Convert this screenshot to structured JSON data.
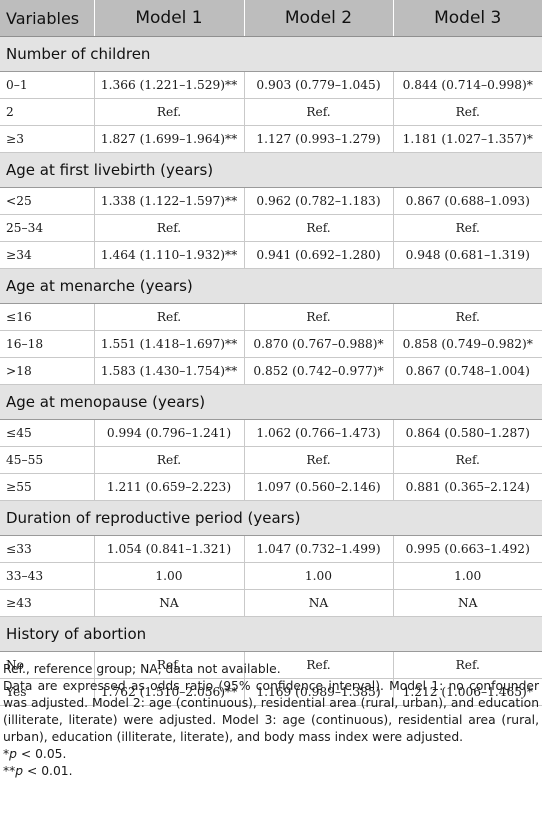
{
  "table": {
    "headers": [
      "Variables",
      "Model 1",
      "Model 2",
      "Model 3"
    ],
    "sections": [
      {
        "title": "Number of children",
        "rows": [
          {
            "label": "0–1",
            "m1": "1.366 (1.221–1.529)**",
            "m2": "0.903 (0.779–1.045)",
            "m3": "0.844 (0.714–0.998)*"
          },
          {
            "label": "2",
            "m1": "Ref.",
            "m2": "Ref.",
            "m3": "Ref."
          },
          {
            "label": "≥3",
            "m1": "1.827 (1.699–1.964)**",
            "m2": "1.127 (0.993–1.279)",
            "m3": "1.181 (1.027–1.357)*"
          }
        ]
      },
      {
        "title": "Age at first livebirth (years)",
        "rows": [
          {
            "label": "<25",
            "m1": "1.338 (1.122–1.597)**",
            "m2": "0.962 (0.782–1.183)",
            "m3": "0.867 (0.688–1.093)"
          },
          {
            "label": "25–34",
            "m1": "Ref.",
            "m2": "Ref.",
            "m3": "Ref."
          },
          {
            "label": "≥34",
            "m1": "1.464 (1.110–1.932)**",
            "m2": "0.941 (0.692–1.280)",
            "m3": "0.948 (0.681–1.319)"
          }
        ]
      },
      {
        "title": "Age at menarche (years)",
        "rows": [
          {
            "label": "≤16",
            "m1": "Ref.",
            "m2": "Ref.",
            "m3": "Ref."
          },
          {
            "label": "16–18",
            "m1": "1.551 (1.418–1.697)**",
            "m2": "0.870 (0.767–0.988)*",
            "m3": "0.858 (0.749–0.982)*"
          },
          {
            "label": ">18",
            "m1": "1.583 (1.430–1.754)**",
            "m2": "0.852 (0.742–0.977)*",
            "m3": "0.867 (0.748–1.004)"
          }
        ]
      },
      {
        "title": "Age at menopause (years)",
        "rows": [
          {
            "label": "≤45",
            "m1": "0.994 (0.796–1.241)",
            "m2": "1.062 (0.766–1.473)",
            "m3": "0.864 (0.580–1.287)"
          },
          {
            "label": "45–55",
            "m1": "Ref.",
            "m2": "Ref.",
            "m3": "Ref."
          },
          {
            "label": "≥55",
            "m1": "1.211 (0.659–2.223)",
            "m2": "1.097 (0.560–2.146)",
            "m3": "0.881 (0.365–2.124)"
          }
        ]
      },
      {
        "title": "Duration of reproductive period (years)",
        "rows": [
          {
            "label": "≤33",
            "m1": "1.054 (0.841–1.321)",
            "m2": "1.047 (0.732–1.499)",
            "m3": "0.995 (0.663–1.492)"
          },
          {
            "label": "33–43",
            "m1": "1.00",
            "m2": "1.00",
            "m3": "1.00"
          },
          {
            "label": "≥43",
            "m1": "NA",
            "m2": "NA",
            "m3": "NA"
          }
        ]
      },
      {
        "title": "History of abortion",
        "rows": [
          {
            "label": "No",
            "m1": "Ref.",
            "m2": "Ref.",
            "m3": "Ref."
          },
          {
            "label": "Yes",
            "m1": "1.762 (1.510–2.056)**",
            "m2": "1.169 (0.989–1.385)",
            "m3": "1.212 (1.006–1.465)*"
          }
        ]
      }
    ]
  },
  "footnotes": {
    "ref_note": "Ref., reference group; NA, data not available.",
    "model_note": "Data are expressed as odds ratio (95% confidence interval). Model 1: no confounder was adjusted. Model 2: age (continuous), residential area (rural, urban), and education (illiterate, literate) were adjusted. Model 3: age (continuous), residential area (rural, urban), education (illiterate, literate), and body mass index were adjusted.",
    "sig1_prefix": "*",
    "sig1_p": "p",
    "sig1_rest": " < 0.05.",
    "sig2_prefix": "**",
    "sig2_p": "p",
    "sig2_rest": " < 0.01."
  }
}
